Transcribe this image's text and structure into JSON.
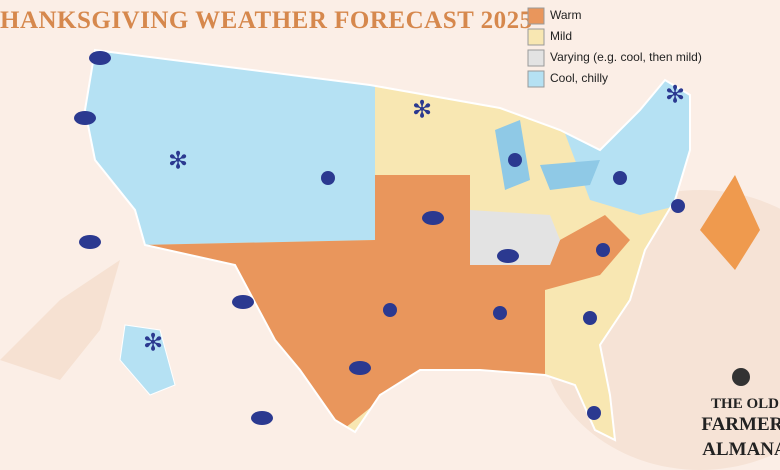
{
  "header": {
    "title": "HANKSGIVING WEATHER FORECAST 2025"
  },
  "legend": [
    {
      "label": "Warm",
      "color": "#e9965c"
    },
    {
      "label": "Mild",
      "color": "#f8e7b2"
    },
    {
      "label": "Varying (e.g. cool, then mild)",
      "color": "#e3e3e3"
    },
    {
      "label": "Cool, chilly",
      "color": "#b5e1f3"
    }
  ],
  "logo": {
    "line1": "THE OLD",
    "line2": "FARMER'",
    "line3": "ALMANA"
  }
}
